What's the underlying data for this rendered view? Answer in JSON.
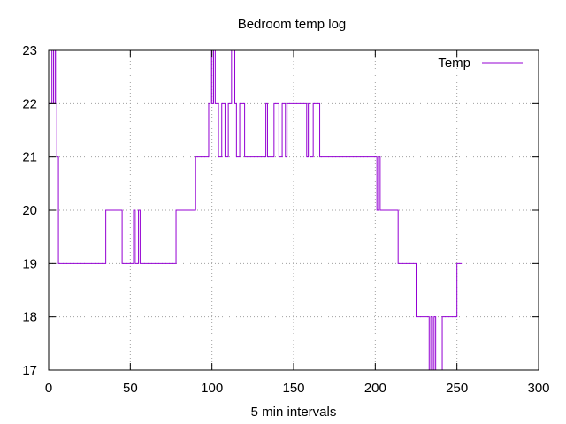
{
  "chart_data": {
    "type": "line",
    "title": "Bedroom temp log",
    "xlabel": "5 min intervals",
    "ylabel": "",
    "xlim": [
      0,
      300
    ],
    "ylim": [
      17,
      23
    ],
    "xticks": [
      0,
      50,
      100,
      150,
      200,
      250,
      300
    ],
    "yticks": [
      17,
      18,
      19,
      20,
      21,
      22,
      23
    ],
    "grid": true,
    "legend_position": "top-right",
    "series": [
      {
        "name": "Temp",
        "color": "#9400d3",
        "step": true,
        "x": [
          0,
          2,
          3,
          4,
          5,
          6,
          35,
          45,
          50,
          52,
          53,
          55,
          56,
          78,
          90,
          98,
          99,
          100,
          101,
          102,
          104,
          106,
          108,
          110,
          112,
          114,
          115,
          117,
          120,
          133,
          134,
          135,
          138,
          141,
          143,
          145,
          146,
          148,
          158,
          159,
          160,
          162,
          166,
          200,
          201,
          202,
          203,
          205,
          206,
          214,
          225,
          233,
          234,
          235,
          236,
          237,
          238,
          241,
          242,
          243,
          250,
          253
        ],
        "y": [
          22,
          23,
          22,
          23,
          21,
          19,
          20,
          19,
          19,
          20,
          19,
          20,
          19,
          20,
          21,
          22,
          23,
          22,
          23,
          22,
          21,
          22,
          21,
          22,
          23,
          22,
          21,
          22,
          21,
          22,
          21,
          21,
          22,
          21,
          22,
          21,
          22,
          22,
          21,
          22,
          21,
          22,
          21,
          21,
          20,
          21,
          20,
          20,
          20,
          19,
          18,
          17,
          18,
          17,
          18,
          17,
          17,
          18,
          18,
          18,
          19,
          19
        ]
      }
    ]
  }
}
